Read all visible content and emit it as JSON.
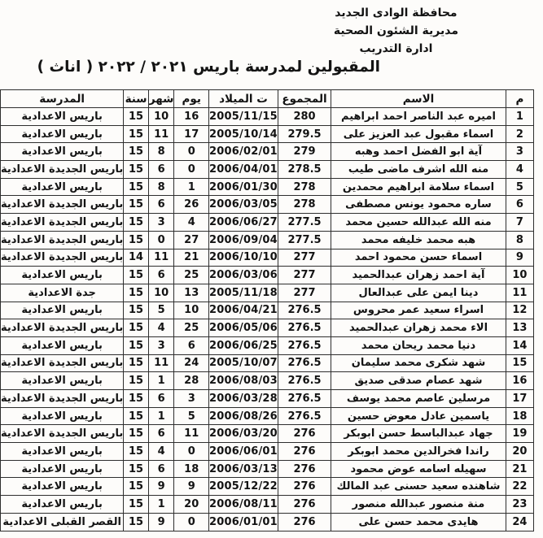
{
  "letterhead": {
    "line1": "محافظة الوادى الجديد",
    "line2": "مديرية الشئون الصحية",
    "line3": "ادارة التدريب"
  },
  "title": "المقبولين لمدرسة باريس ٢٠٢١ / ٢٠٢٢ ( اناث )",
  "table": {
    "headers": {
      "num": "م",
      "name": "الاسم",
      "total": "المجموع",
      "birth_date": "ت الميلاد",
      "day": "يوم",
      "month": "شهر",
      "year": "سنة",
      "school": "المدرسة"
    },
    "rows": [
      [
        "1",
        "اميره عبد الناصر احمد ابراهيم",
        "280",
        "2005/11/15",
        "16",
        "10",
        "15",
        "باريس الاعدادية"
      ],
      [
        "2",
        "اسماء مقبول عبد العزيز على",
        "279.5",
        "2005/10/14",
        "17",
        "11",
        "15",
        "باريس الاعدادية"
      ],
      [
        "3",
        "آية ابو الفضل احمد وهبه",
        "279",
        "2006/02/01",
        "0",
        "8",
        "15",
        "باريس الاعدادية"
      ],
      [
        "4",
        "منه الله اشرف ماضى طيب",
        "278.5",
        "2006/04/01",
        "0",
        "6",
        "15",
        "باريس الجديدة الاعدادية"
      ],
      [
        "5",
        "اسماء سلامة ابراهيم محمدين",
        "278",
        "2006/01/30",
        "1",
        "8",
        "15",
        "باريس الاعدادية"
      ],
      [
        "6",
        "ساره محمود يونس مصطفى",
        "278",
        "2006/03/05",
        "26",
        "6",
        "15",
        "باريس الجديدة الاعدادية"
      ],
      [
        "7",
        "منه الله عبدالله حسين محمد",
        "277.5",
        "2006/06/27",
        "4",
        "3",
        "15",
        "باريس الجديدة الاعدادية"
      ],
      [
        "8",
        "هبه محمد خليفه محمد",
        "277.5",
        "2006/09/04",
        "27",
        "0",
        "15",
        "باريس الجديدة الاعدادية"
      ],
      [
        "9",
        "اسماء حسن محمود احمد",
        "277",
        "2006/10/10",
        "21",
        "11",
        "14",
        "باريس الجديدة الاعدادية"
      ],
      [
        "10",
        "آية احمد زهران عبدالحميد",
        "277",
        "2006/03/06",
        "25",
        "6",
        "15",
        "باريس الاعدادية"
      ],
      [
        "11",
        "دينا ايمن على عبدالعال",
        "277",
        "2005/11/18",
        "13",
        "10",
        "15",
        "جدة الاعدادية"
      ],
      [
        "12",
        "اسراء سعيد عمر محروس",
        "276.5",
        "2006/04/21",
        "10",
        "5",
        "15",
        "باريس الاعدادية"
      ],
      [
        "13",
        "الاء محمد زهران عبدالحميد",
        "276.5",
        "2006/05/06",
        "25",
        "4",
        "15",
        "باريس الجديدة الاعدادية"
      ],
      [
        "14",
        "دنيا محمد ريحان محمد",
        "276.5",
        "2006/06/25",
        "6",
        "3",
        "15",
        "باريس الاعدادية"
      ],
      [
        "15",
        "شهد شكرى محمد سليمان",
        "276.5",
        "2005/10/07",
        "24",
        "11",
        "15",
        "باريس الجديدة الاعدادية"
      ],
      [
        "16",
        "شهد عصام صدقى صديق",
        "276.5",
        "2006/08/03",
        "28",
        "1",
        "15",
        "باريس الاعدادية"
      ],
      [
        "17",
        "مرسلين عاصم محمد يوسف",
        "276.5",
        "2006/03/28",
        "3",
        "6",
        "15",
        "باريس الجديدة الاعدادية"
      ],
      [
        "18",
        "ياسمين عادل معوض حسين",
        "276.5",
        "2006/08/26",
        "5",
        "1",
        "15",
        "باريس الاعدادية"
      ],
      [
        "19",
        "جهاد عبدالباسط حسن ابوبكر",
        "276",
        "2006/03/20",
        "11",
        "6",
        "15",
        "باريس الجديدة الاعدادية"
      ],
      [
        "20",
        "راندا فخرالدين محمد ابوبكر",
        "276",
        "2006/06/01",
        "0",
        "4",
        "15",
        "باريس الاعدادية"
      ],
      [
        "21",
        "سهيله اسامه عوض محمود",
        "276",
        "2006/03/13",
        "18",
        "6",
        "15",
        "باريس الاعدادية"
      ],
      [
        "22",
        "شاهنده سعيد حسنى عبد المالك",
        "276",
        "2005/12/22",
        "9",
        "9",
        "15",
        "باريس الاعدادية"
      ],
      [
        "23",
        "منة منصور عبدالله منصور",
        "276",
        "2006/08/11",
        "20",
        "1",
        "15",
        "باريس الاعدادية"
      ],
      [
        "24",
        "هايدى محمد حسن على",
        "276",
        "2006/01/01",
        "0",
        "9",
        "15",
        "القصر القبلى الاعدادية"
      ]
    ]
  },
  "colors": {
    "background": "#fdfcfa",
    "text": "#131313",
    "border": "#2e2e2e"
  }
}
